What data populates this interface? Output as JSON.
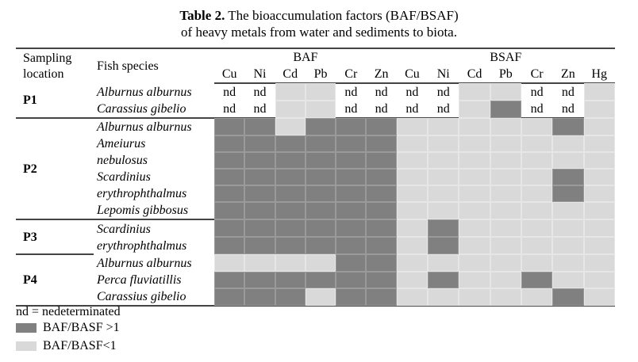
{
  "title": {
    "bold": "Table 2.",
    "line1": " The bioaccumulation factors (BAF/BSAF)",
    "line2": "of heavy metals from water and sediments to biota."
  },
  "header": {
    "location": "Sampling location",
    "species": "Fish species",
    "group1": "BAF",
    "group2": "BSAF",
    "baf_cols": [
      "Cu",
      "Ni",
      "Cd",
      "Pb",
      "Cr",
      "Zn"
    ],
    "bsaf_cols": [
      "Cu",
      "Ni",
      "Cd",
      "Pb",
      "Cr",
      "Zn",
      "Hg"
    ]
  },
  "cell_value_nd": "nd",
  "colors": {
    "high": "#808080",
    "low": "#d9d9d9"
  },
  "groups": [
    {
      "location": "P1",
      "rows": [
        {
          "species": "Alburnus alburnus",
          "lines": 1,
          "cells": "NNLLNNNNLLNNL"
        },
        {
          "species": "Carassius gibelio",
          "lines": 1,
          "cells": "NNLLNNNNLDNNL"
        }
      ]
    },
    {
      "location": "P2",
      "rows": [
        {
          "species": "Alburnus alburnus",
          "lines": 1,
          "cells": "DDLDDDLLLLLDL"
        },
        {
          "species": "Ameiurus nebulosus",
          "lines": 2,
          "cells": "DDDDDDLLLLLLL"
        },
        {
          "species": "Scardinius erythrophthalmus",
          "lines": 2,
          "cells": "DDDDDDLLLLLDL"
        },
        {
          "species": "Lepomis gibbosus",
          "lines": 1,
          "cells": "DDDDDDLLLLLLL"
        }
      ]
    },
    {
      "location": "P3",
      "rows": [
        {
          "species": "Scardinius erythrophthalmus",
          "lines": 2,
          "cells": "DDDDDDLDLLLLL"
        }
      ]
    },
    {
      "location": "P4",
      "rows": [
        {
          "species": "Alburnus alburnus",
          "lines": 1,
          "cells": "LLLLDDLLLLLLL"
        },
        {
          "species": "Perca fluviatillis",
          "lines": 1,
          "cells": "DDDDDDLDLLDLL"
        },
        {
          "species": "Carassius gibelio",
          "lines": 1,
          "cells": "DDDLDDLLLLLDL"
        }
      ]
    }
  ],
  "legend": {
    "note": "nd = nedeterminated",
    "high": "BAF/BASF >1",
    "low": "BAF/BASF<1"
  }
}
